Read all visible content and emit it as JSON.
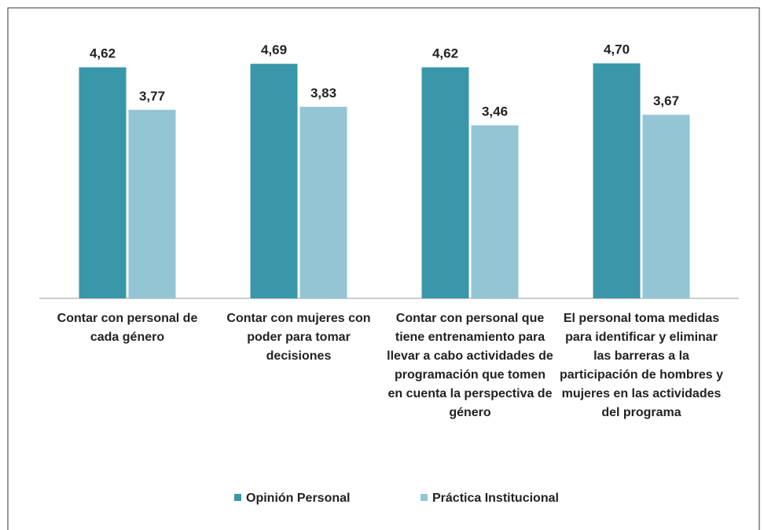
{
  "chart_data": {
    "type": "bar",
    "categories": [
      "Contar con personal de cada género",
      "Contar con mujeres con poder para tomar decisiones",
      "Contar con personal que tiene entrenamiento para llevar a cabo actividades de programación que tomen en cuenta la perspectiva de género",
      "El personal toma medidas para identificar y eliminar las barreras a la participación de hombres y mujeres en las actividades del programa"
    ],
    "series": [
      {
        "name": "Opinión Personal",
        "color": "#3a97a9",
        "values": [
          4.62,
          4.69,
          4.62,
          4.7
        ],
        "value_labels": [
          "4,62",
          "4,69",
          "4,62",
          "4,70"
        ]
      },
      {
        "name": "Práctica Institucional",
        "color": "#93c5d4",
        "values": [
          3.77,
          3.83,
          3.46,
          3.67
        ],
        "value_labels": [
          "3,77",
          "3,83",
          "3,46",
          "3,67"
        ]
      }
    ],
    "ylim": [
      0,
      5
    ],
    "legend": "bottom"
  }
}
